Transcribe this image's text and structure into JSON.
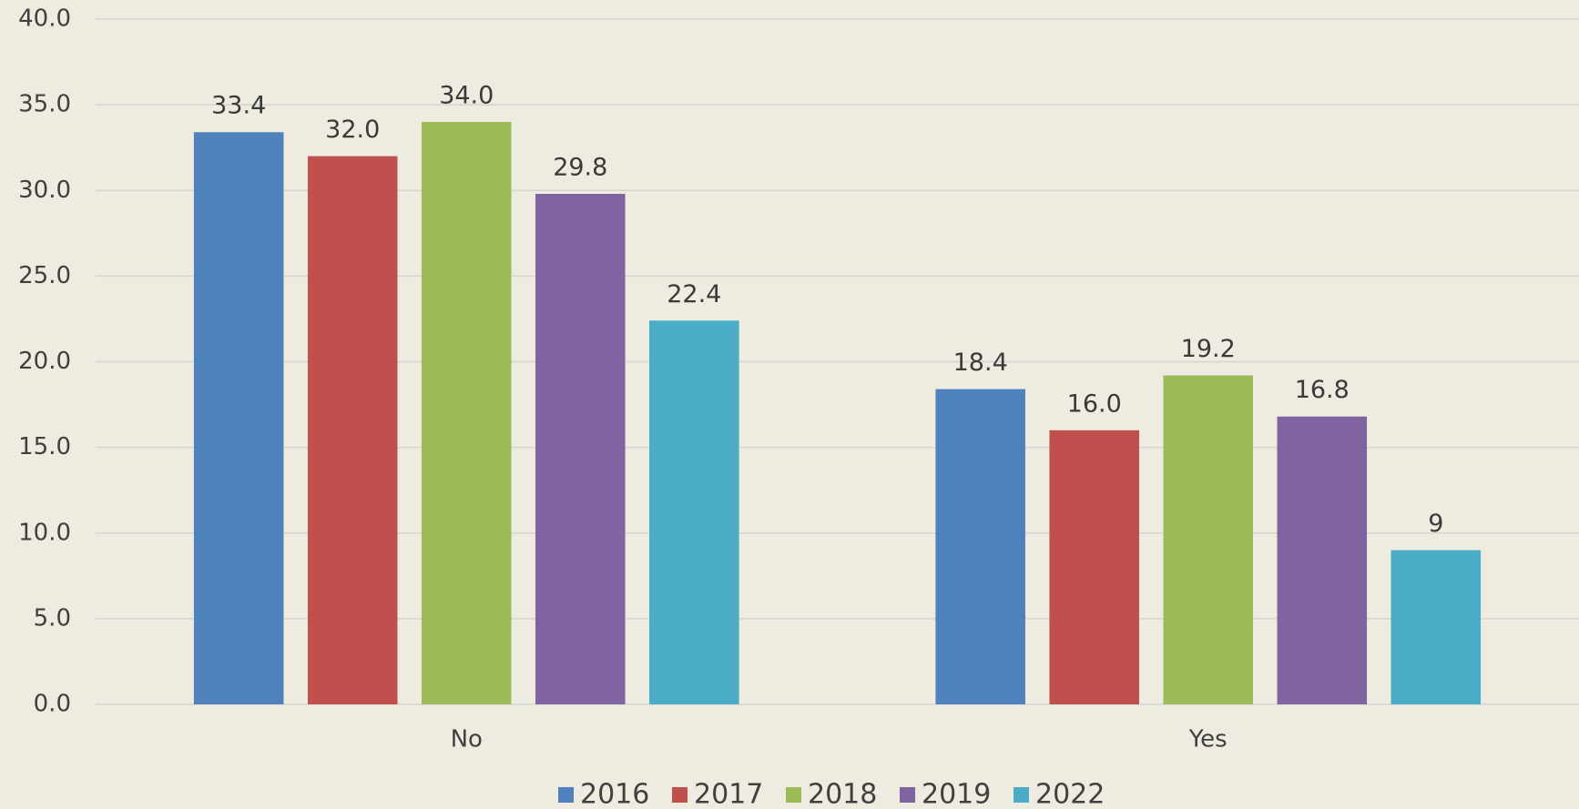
{
  "chart_data": {
    "type": "bar",
    "categories": [
      "No",
      "Yes"
    ],
    "series": [
      {
        "name": "2016",
        "color": "#4f81bd",
        "values": [
          33.4,
          18.4
        ],
        "value_labels": [
          "33.4",
          "18.4"
        ]
      },
      {
        "name": "2017",
        "color": "#c0504d",
        "values": [
          32.0,
          16.0
        ],
        "value_labels": [
          "32.0",
          "16.0"
        ]
      },
      {
        "name": "2018",
        "color": "#9bbb59",
        "values": [
          34.0,
          19.2
        ],
        "value_labels": [
          "34.0",
          "19.2"
        ]
      },
      {
        "name": "2019",
        "color": "#8064a2",
        "values": [
          29.8,
          16.8
        ],
        "value_labels": [
          "29.8",
          "16.8"
        ]
      },
      {
        "name": "2022",
        "color": "#4bacc6",
        "values": [
          22.4,
          9
        ],
        "value_labels": [
          "22.4",
          "9"
        ]
      }
    ],
    "ylim": [
      0,
      40
    ],
    "yticks": [
      {
        "value": 0,
        "label": "0.0"
      },
      {
        "value": 5,
        "label": "5.0"
      },
      {
        "value": 10,
        "label": "10.0"
      },
      {
        "value": 15,
        "label": "15.0"
      },
      {
        "value": 20,
        "label": "20.0"
      },
      {
        "value": 25,
        "label": "25.0"
      },
      {
        "value": 30,
        "label": "30.0"
      },
      {
        "value": 35,
        "label": "35.0"
      },
      {
        "value": 40,
        "label": "40.0"
      }
    ],
    "grid": true,
    "legend": "bottom"
  }
}
